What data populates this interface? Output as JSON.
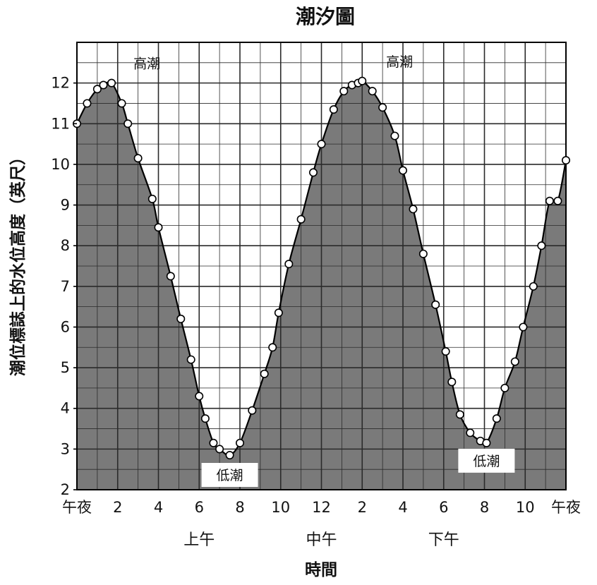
{
  "chart_data": {
    "type": "area",
    "title": "潮汐圖",
    "xlabel": "時間",
    "ylabel": "潮位標誌上的水位高度（英尺）",
    "x_tick_labels": [
      "午夜",
      "2",
      "4",
      "6",
      "8",
      "10",
      "12",
      "2",
      "4",
      "6",
      "8",
      "10",
      "午夜"
    ],
    "period_labels": [
      "上午",
      "中午",
      "下午"
    ],
    "y_ticks": [
      2,
      3,
      4,
      5,
      6,
      7,
      8,
      9,
      10,
      11,
      12
    ],
    "xlim": [
      0,
      24
    ],
    "ylim": [
      2,
      13
    ],
    "grid": true,
    "colors": {
      "fill": "#7a7a7a",
      "line": "#000000",
      "marker": "#ffffff",
      "grid": "#2a2a2a"
    },
    "annotations": [
      {
        "text": "高潮",
        "x": 1.7,
        "y": 12.0
      },
      {
        "text": "高潮",
        "x": 14.1,
        "y": 12.05
      },
      {
        "text": "低潮",
        "x": 7.5,
        "y": 2.85
      },
      {
        "text": "低潮",
        "x": 20.1,
        "y": 3.2
      }
    ],
    "series": [
      {
        "x": [
          0,
          0.5,
          1.0,
          1.3,
          1.7,
          2.2,
          2.5,
          3.0,
          3.7,
          4.0,
          4.6,
          5.1,
          5.6,
          6.0,
          6.3,
          6.7,
          7.0,
          7.5,
          8.0,
          8.6,
          9.2,
          9.6,
          9.9,
          10.4,
          11.0,
          11.6,
          12.0,
          12.6,
          13.1,
          13.5,
          13.8,
          14.0,
          14.5,
          15.0,
          15.6,
          16.0,
          16.5,
          17.0,
          17.6,
          18.1,
          18.4,
          18.8,
          19.3,
          19.8,
          20.1,
          20.6,
          21.0,
          21.5,
          21.9,
          22.4,
          22.8,
          23.2,
          23.6,
          24.0
        ],
        "y": [
          11.0,
          11.5,
          11.85,
          11.95,
          12.0,
          11.5,
          11.0,
          10.15,
          9.15,
          8.45,
          7.25,
          6.2,
          5.2,
          4.3,
          3.75,
          3.15,
          3.0,
          2.85,
          3.15,
          3.95,
          4.85,
          5.5,
          6.35,
          7.55,
          8.65,
          9.8,
          10.5,
          11.35,
          11.8,
          11.95,
          12.0,
          12.05,
          11.8,
          11.4,
          10.7,
          9.85,
          8.9,
          7.8,
          6.55,
          5.4,
          4.65,
          3.85,
          3.4,
          3.2,
          3.15,
          3.75,
          4.5,
          5.15,
          6.0,
          7.0,
          8.0,
          9.1,
          9.1,
          10.1
        ]
      }
    ]
  }
}
